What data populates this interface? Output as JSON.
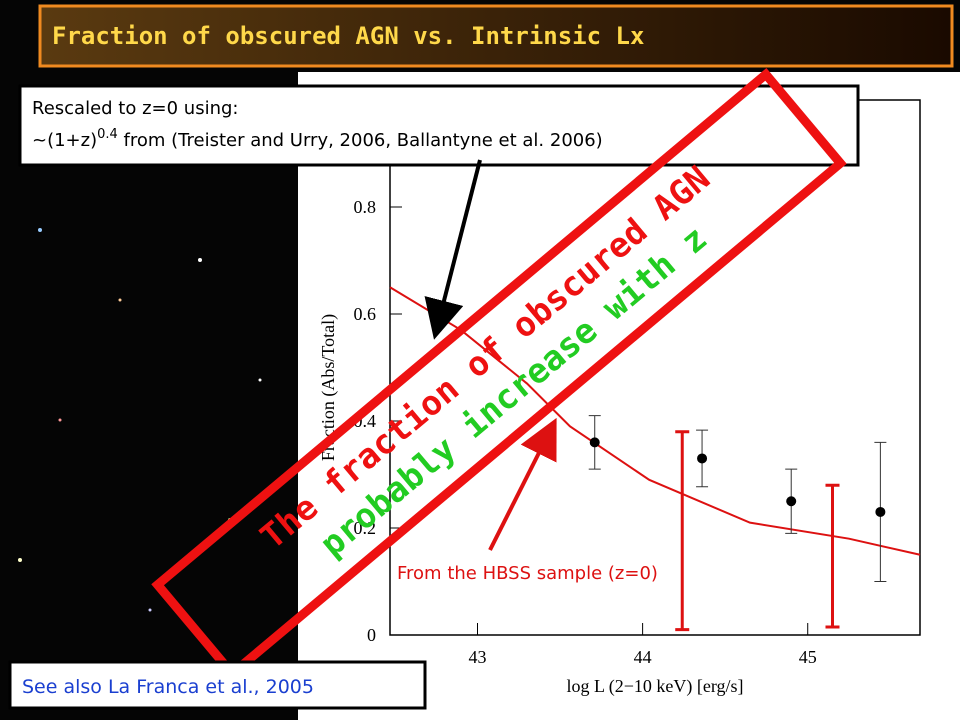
{
  "title": "Fraction of obscured AGN vs. Intrinsic Lx",
  "note": {
    "line1": "Rescaled to z=0 using:",
    "line2_prefix": "~(1+z)",
    "line2_exponent": "0.4",
    "line2_rest": " from (Treister and Urry, 2006, Ballantyne et al. 2006)"
  },
  "callout": {
    "line1": "The fraction of obscured AGN",
    "line2": "probably increase with z"
  },
  "curve_label": "From the HBSS sample (z=0)",
  "see_also": "See also La Franca et al., 2005",
  "chart_data": {
    "type": "scatter",
    "xlabel": "log L (2−10 keV) [erg/s]",
    "ylabel": "Fraction (Abs/Total)",
    "xlim": [
      42.47,
      45.68
    ],
    "ylim": [
      0,
      1
    ],
    "xticks": [
      43,
      44,
      45
    ],
    "yticks": [
      0,
      0.2,
      0.4,
      0.6,
      0.8
    ],
    "points": {
      "color": "#000000",
      "x": [
        43.71,
        44.36,
        44.9,
        45.44
      ],
      "y": [
        0.36,
        0.33,
        0.25,
        0.23
      ],
      "yerr": [
        0.05,
        0.053,
        0.06,
        0.13
      ]
    },
    "hbss_bars": {
      "color": "#dd1111",
      "x": [
        44.24,
        45.15
      ],
      "low": [
        0.01,
        0.015
      ],
      "high": [
        0.38,
        0.28
      ]
    },
    "model_curve": {
      "color": "#dd1111",
      "x": [
        42.47,
        42.9,
        43.3,
        43.56,
        44.04,
        44.65,
        45.25,
        45.68
      ],
      "y": [
        0.65,
        0.57,
        0.47,
        0.39,
        0.29,
        0.21,
        0.18,
        0.15
      ]
    }
  }
}
